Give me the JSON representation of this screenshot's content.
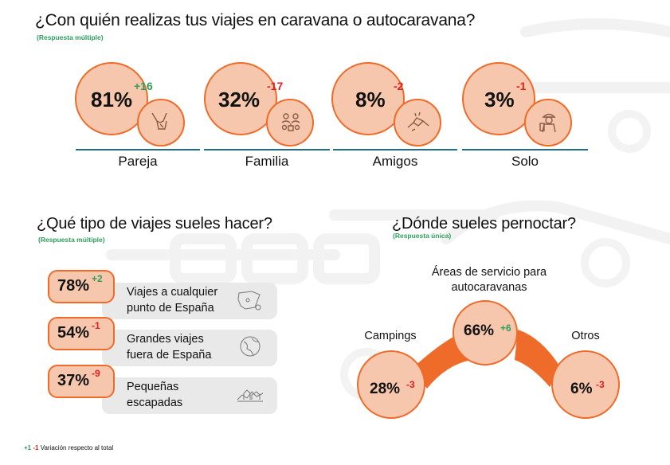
{
  "colors": {
    "accent": "#ef6b2a",
    "fill": "#f7c7ad",
    "positive": "#2e9e5b",
    "negative": "#e02020",
    "divider": "#1f6e88"
  },
  "section1": {
    "title": "¿Con quién realizas tus viajes en caravana o autocaravana?",
    "note": "(Respuesta múltiple)"
  },
  "section2": {
    "title": "¿Qué tipo de viajes sueles hacer?",
    "note": "(Respuesta múltiple)"
  },
  "section3": {
    "title": "¿Dónde sueles pernoctar?",
    "note": "(Respuesta única)"
  },
  "legend": {
    "pos": "+1",
    "neg": "-1",
    "text": "Variación respecto al total"
  },
  "chart_data": [
    {
      "type": "bubble",
      "title": "¿Con quién realizas tus viajes en caravana o autocaravana?",
      "subtitle": "(Respuesta múltiple)",
      "items": [
        {
          "label": "Pareja",
          "value": 81,
          "value_text": "81%",
          "variation": 16,
          "variation_text": "+16",
          "icon": "holding-hands-icon"
        },
        {
          "label": "Familia",
          "value": 32,
          "value_text": "32%",
          "variation": -17,
          "variation_text": "-17",
          "icon": "family-icon"
        },
        {
          "label": "Amigos",
          "value": 8,
          "value_text": "8%",
          "variation": -2,
          "variation_text": "-2",
          "icon": "handshake-icon"
        },
        {
          "label": "Solo",
          "value": 3,
          "value_text": "3%",
          "variation": -1,
          "variation_text": "-1",
          "icon": "traveler-icon"
        }
      ]
    },
    {
      "type": "bar",
      "title": "¿Qué tipo de viajes sueles hacer?",
      "subtitle": "(Respuesta múltiple)",
      "items": [
        {
          "label_lines": [
            "Viajes a cualquier",
            "punto de España"
          ],
          "value": 78,
          "value_text": "78%",
          "variation": 2,
          "variation_text": "+2",
          "icon": "spain-map-icon"
        },
        {
          "label_lines": [
            "Grandes viajes",
            "fuera de España"
          ],
          "value": 54,
          "value_text": "54%",
          "variation": -1,
          "variation_text": "-1",
          "icon": "globe-icon"
        },
        {
          "label_lines": [
            "Pequeñas",
            "escapadas"
          ],
          "value": 37,
          "value_text": "37%",
          "variation": -9,
          "variation_text": "-9",
          "icon": "village-icon"
        }
      ]
    },
    {
      "type": "bubble",
      "title": "¿Dónde sueles pernoctar?",
      "subtitle": "(Respuesta única)",
      "items": [
        {
          "label_lines": [
            "Campings"
          ],
          "value": 28,
          "value_text": "28%",
          "variation": -3,
          "variation_text": "-3"
        },
        {
          "label_lines": [
            "Áreas de servicio para",
            "autocaravanas"
          ],
          "value": 66,
          "value_text": "66%",
          "variation": 6,
          "variation_text": "+6"
        },
        {
          "label_lines": [
            "Otros"
          ],
          "value": 6,
          "value_text": "6%",
          "variation": -3,
          "variation_text": "-3"
        }
      ]
    }
  ]
}
